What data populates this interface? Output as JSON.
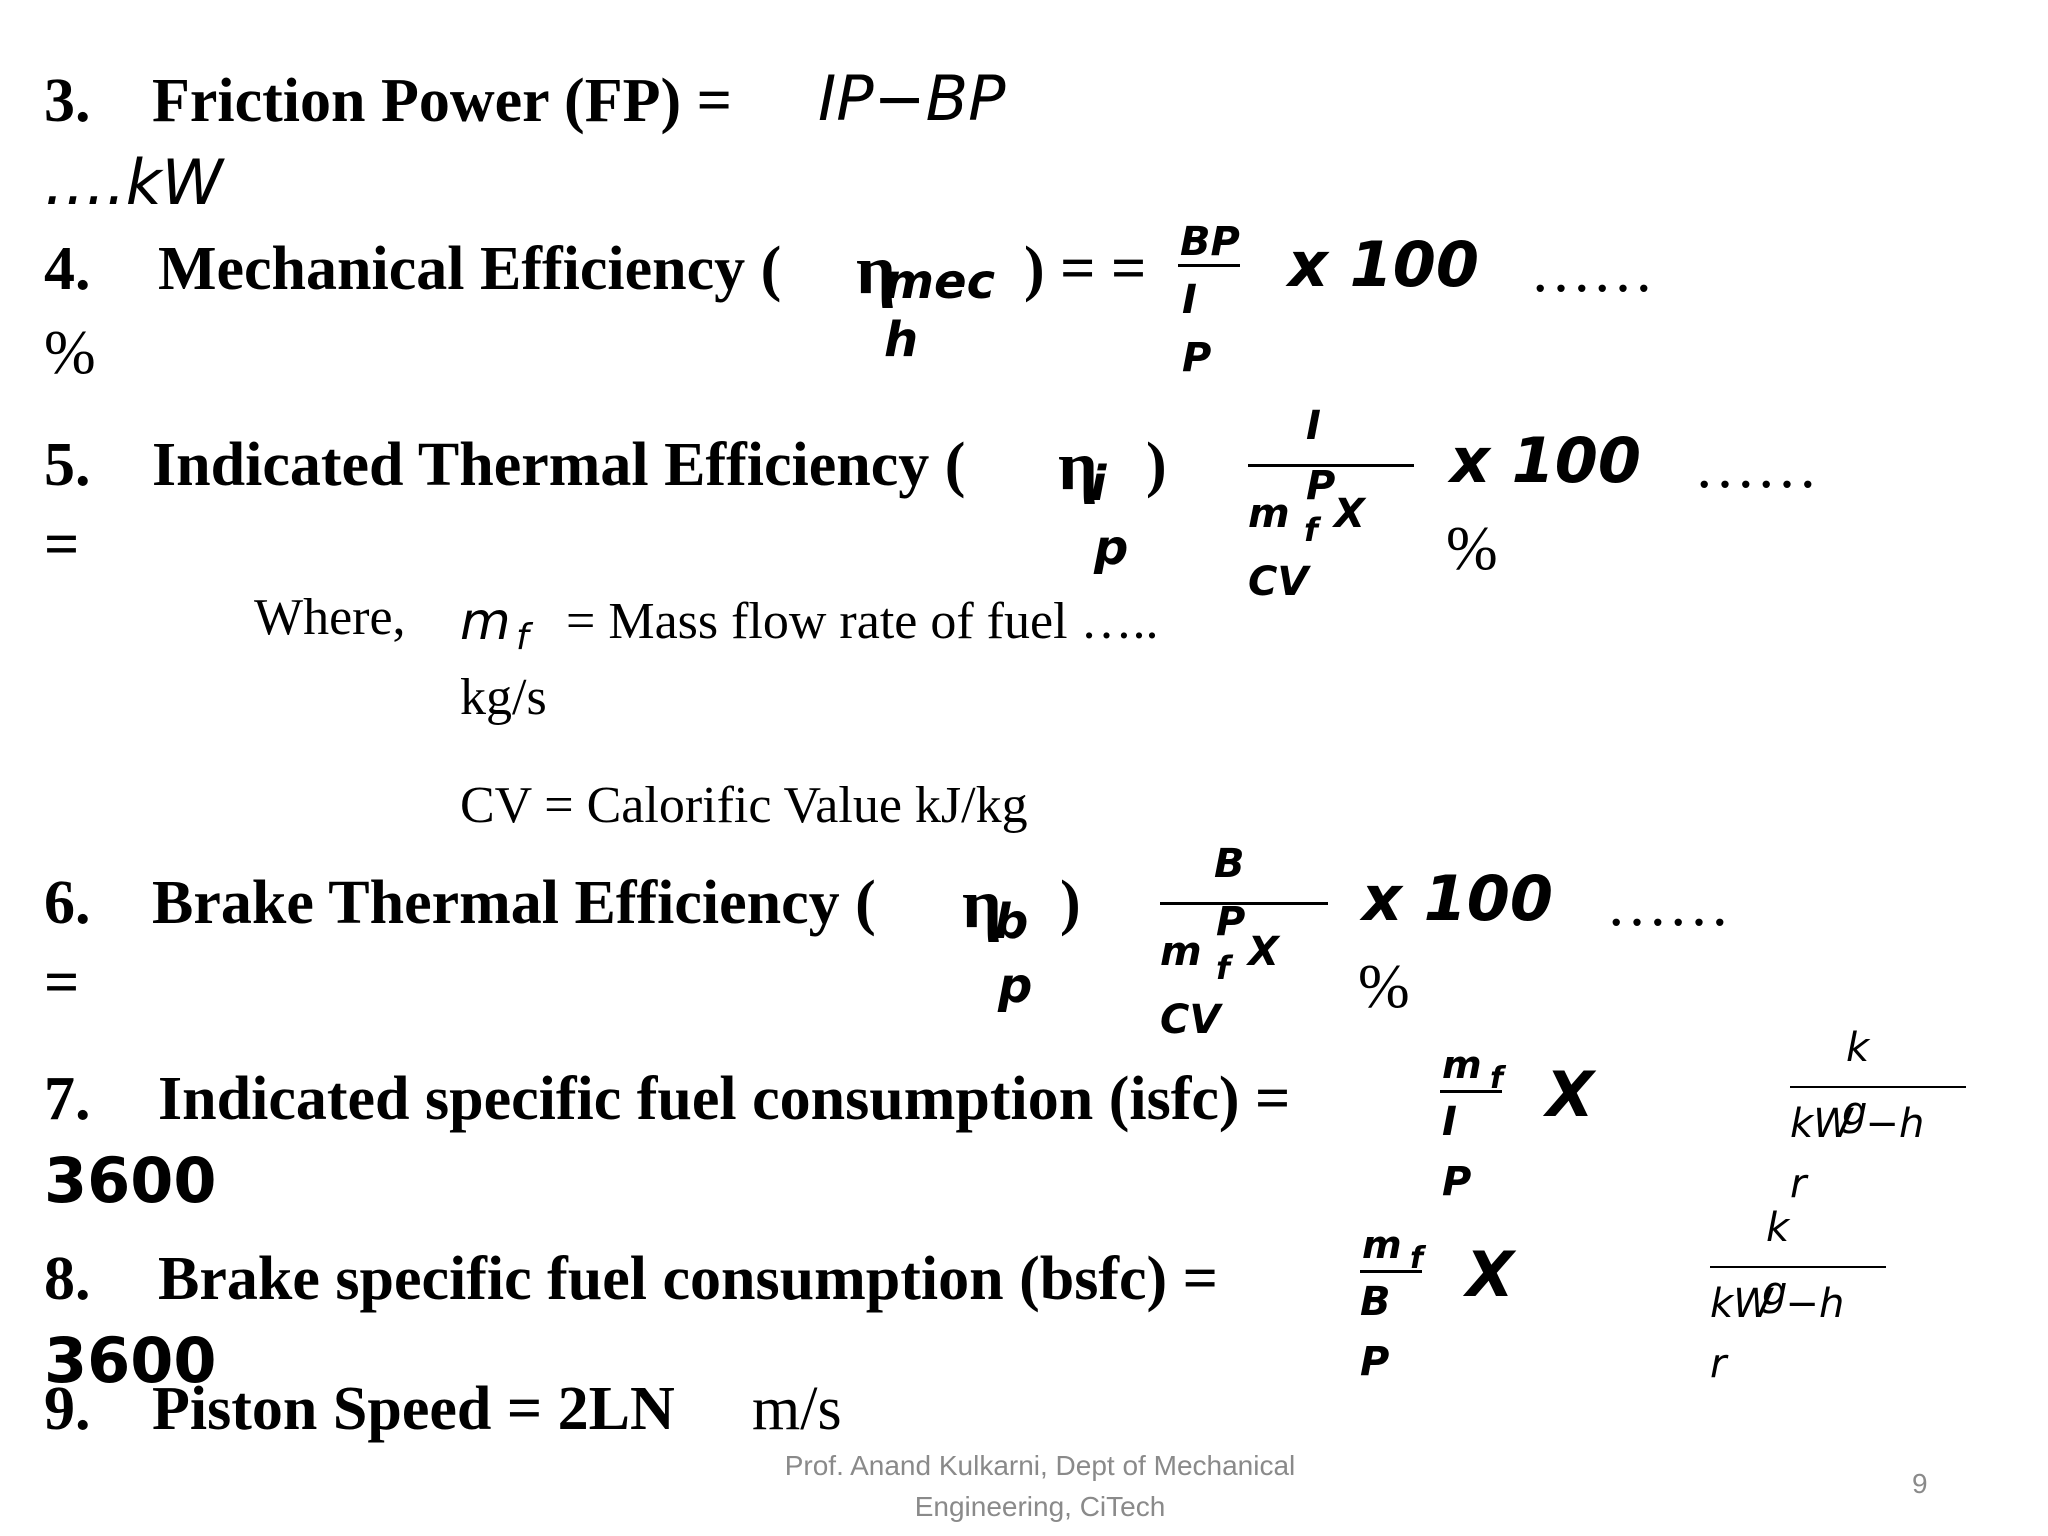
{
  "item3": {
    "number": "3.",
    "label": "Friction Power (FP) =",
    "expr": "IP−BP",
    "unit": "….kW"
  },
  "item4": {
    "number": "4.",
    "label": "Mechanical Efficiency (",
    "eta": "η",
    "sub_line1": "mec",
    "sub_line2": "h",
    "close": ") = =",
    "num": "BP",
    "den_line1": "I",
    "den_line2": "P",
    "times": "x 100",
    "dots": "……",
    "unit": "%"
  },
  "item5": {
    "number": "5.",
    "label": "Indicated Thermal Efficiency (",
    "eta": "η",
    "sub_line1": "i",
    "sub_line2": "p",
    "close": ")",
    "equals": "=",
    "num_line1": "I",
    "num_line2": "P",
    "den_line1": "m",
    "den_sub": "f",
    "den_x": "X",
    "den_line2": "CV",
    "times": "x 100",
    "dots": "……",
    "unit": "%"
  },
  "where": {
    "label": "Where,",
    "mf_symbol": "m",
    "mf_sub": "f",
    "mf_text": "= Mass flow rate of fuel …..",
    "mf_unit": "kg/s",
    "cv_text": "CV = Calorific Value kJ/kg"
  },
  "item6": {
    "number": "6.",
    "label": "Brake Thermal Efficiency (",
    "eta": "η",
    "sub_line1": "b",
    "sub_line2": "p",
    "close": ")",
    "equals": "=",
    "num_line1": "B",
    "num_line2": "P",
    "den_line1": "m",
    "den_sub": "f",
    "den_x": "X",
    "den_line2": "CV",
    "times": "x 100",
    "dots": "……",
    "unit": "%"
  },
  "item7": {
    "number": "7.",
    "label": "Indicated specific fuel consumption (isfc) =",
    "num": "m",
    "num_sub": "f",
    "den_line1": "I",
    "den_line2": "P",
    "times": "X",
    "value": "3600",
    "unit_num": "k",
    "unit_g": "g",
    "unit_den": "kW −h",
    "unit_r": "r"
  },
  "item8": {
    "number": "8.",
    "label": "Brake specific fuel consumption (bsfc) =",
    "num": "m",
    "num_sub": "f",
    "den_line1": "B",
    "den_line2": "P",
    "times": "X",
    "value": "3600",
    "unit_num": "k",
    "unit_g": "g",
    "unit_den": "kW −h",
    "unit_r": "r"
  },
  "item9": {
    "number": "9.",
    "label": "Piston Speed = 2LN",
    "unit": "m/s"
  },
  "footer": {
    "author_line1": "Prof. Anand Kulkarni, Dept of Mechanical",
    "author_line2": "Engineering, CiTech",
    "page_number": "9"
  }
}
